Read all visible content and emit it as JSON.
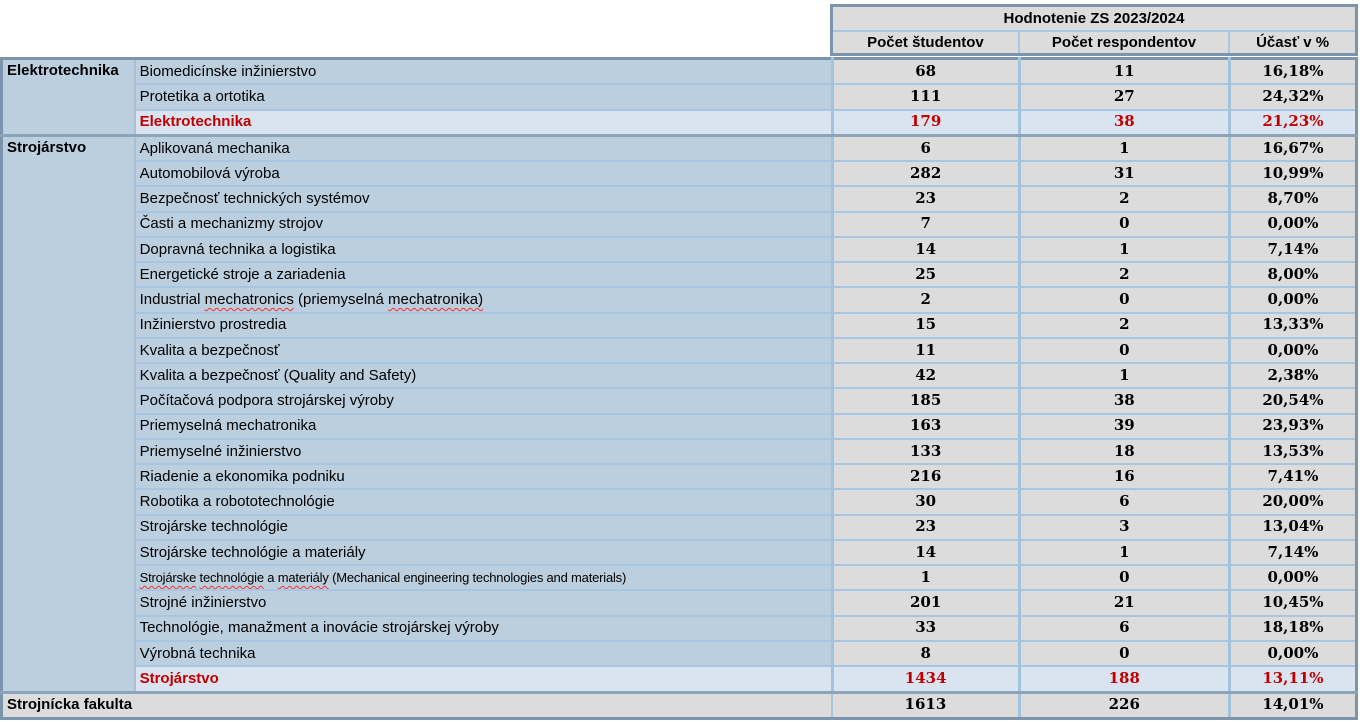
{
  "table": {
    "header": {
      "title": "Hodnotenie ZS 2023/2024",
      "columns": [
        "Počet študentov",
        "Počet respondentov",
        "Účasť v %"
      ]
    },
    "groups": [
      {
        "name": "Elektrotechnika",
        "rows": [
          {
            "program": "Biomedicínske inžinierstvo",
            "students": "68",
            "respondents": "11",
            "participation": "16,18%"
          },
          {
            "program": "Protetika a ortotika",
            "students": "111",
            "respondents": "27",
            "participation": "24,32%"
          }
        ],
        "summary": {
          "program": "Elektrotechnika",
          "students": "179",
          "respondents": "38",
          "participation": "21,23%"
        }
      },
      {
        "name": "Strojárstvo",
        "rows": [
          {
            "program": "Aplikovaná mechanika",
            "students": "6",
            "respondents": "1",
            "participation": "16,67%"
          },
          {
            "program": "Automobilová výroba",
            "students": "282",
            "respondents": "31",
            "participation": "10,99%"
          },
          {
            "program": "Bezpečnosť technických systémov",
            "students": "23",
            "respondents": "2",
            "participation": "8,70%"
          },
          {
            "program": "Časti a mechanizmy strojov",
            "students": "7",
            "respondents": "0",
            "participation": "0,00%"
          },
          {
            "program": "Dopravná technika a logistika",
            "students": "14",
            "respondents": "1",
            "participation": "7,14%"
          },
          {
            "program": "Energetické stroje a zariadenia",
            "students": "25",
            "respondents": "2",
            "participation": "8,00%"
          },
          {
            "program": "Industrial mechatronics (priemyselná mechatronika)",
            "students": "2",
            "respondents": "0",
            "participation": "0,00%",
            "wavy": [
              "mechatronics",
              "mechatronika"
            ]
          },
          {
            "program": "Inžinierstvo prostredia",
            "students": "15",
            "respondents": "2",
            "participation": "13,33%"
          },
          {
            "program": "Kvalita a bezpečnosť",
            "students": "11",
            "respondents": "0",
            "participation": "0,00%"
          },
          {
            "program": "Kvalita a bezpečnosť (Quality and Safety)",
            "students": "42",
            "respondents": "1",
            "participation": "2,38%"
          },
          {
            "program": "Počítačová podpora strojárskej výroby",
            "students": "185",
            "respondents": "38",
            "participation": "20,54%"
          },
          {
            "program": "Priemyselná mechatronika",
            "students": "163",
            "respondents": "39",
            "participation": "23,93%"
          },
          {
            "program": "Priemyselné inžinierstvo",
            "students": "133",
            "respondents": "18",
            "participation": "13,53%"
          },
          {
            "program": "Riadenie a ekonomika podniku",
            "students": "216",
            "respondents": "16",
            "participation": "7,41%"
          },
          {
            "program": "Robotika a robototechnológie",
            "students": "30",
            "respondents": "6",
            "participation": "20,00%"
          },
          {
            "program": "Strojárske technológie",
            "students": "23",
            "respondents": "3",
            "participation": "13,04%"
          },
          {
            "program": "Strojárske technológie a materiály",
            "students": "14",
            "respondents": "1",
            "participation": "7,14%"
          },
          {
            "program": "Strojárske technológie a materiály (Mechanical engineering technologies and materials)",
            "students": "1",
            "respondents": "0",
            "participation": "0,00%",
            "wavy": [
              "Strojárske",
              "technológie",
              "materiály"
            ],
            "shrink": true
          },
          {
            "program": "Strojné inžinierstvo",
            "students": "201",
            "respondents": "21",
            "participation": "10,45%"
          },
          {
            "program": "Technológie, manažment a inovácie strojárskej výroby",
            "students": "33",
            "respondents": "6",
            "participation": "18,18%"
          },
          {
            "program": "Výrobná technika",
            "students": "8",
            "respondents": "0",
            "participation": "0,00%"
          }
        ],
        "summary": {
          "program": "Strojárstvo",
          "students": "1434",
          "respondents": "188",
          "participation": "13,11%"
        }
      }
    ],
    "total": {
      "name": "Strojnícka fakulta",
      "students": "1613",
      "respondents": "226",
      "participation": "14,01%"
    }
  },
  "colors": {
    "row_blue": "#BCCFDF",
    "cell_gray": "#DCDCDC",
    "summary_blue": "#DAE4F0",
    "header_gray": "#DCDCDC",
    "accent_red": "#C00000",
    "grid_blue": "#A7C6E2",
    "section_border": "#8CA4BA",
    "outer_border": "#7C95AC",
    "spellcheck_wavy_red": "#FF2E2E"
  }
}
